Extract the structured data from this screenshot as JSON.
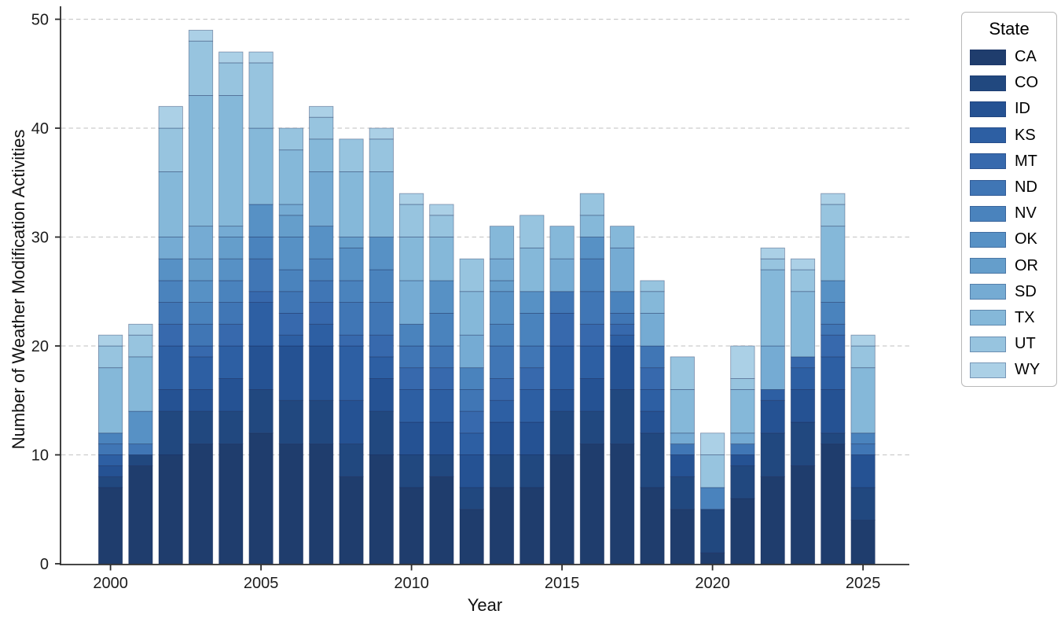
{
  "chart_data": {
    "type": "bar",
    "stacked": true,
    "title": "",
    "xlabel": "Year",
    "ylabel": "Number of Weather Modification Activities",
    "legend_title": "State",
    "legend_position": "outside-upper-right",
    "grid": "horizontal-dashed",
    "ylim": [
      0,
      50
    ],
    "yticks": [
      0,
      10,
      20,
      30,
      40,
      50
    ],
    "xticks": [
      2000,
      2005,
      2010,
      2015,
      2020,
      2025
    ],
    "x": [
      2000,
      2001,
      2002,
      2003,
      2004,
      2005,
      2006,
      2007,
      2008,
      2009,
      2010,
      2011,
      2012,
      2013,
      2014,
      2015,
      2016,
      2017,
      2018,
      2019,
      2020,
      2021,
      2022,
      2023,
      2024,
      2025
    ],
    "totals": [
      21,
      22,
      42,
      49,
      47,
      47,
      40,
      42,
      39,
      40,
      34,
      33,
      28,
      31,
      32,
      31,
      34,
      31,
      26,
      19,
      12,
      20,
      29,
      28,
      34,
      21
    ],
    "series": [
      {
        "name": "CA",
        "color": "#1f3d6d",
        "values": [
          7,
          9,
          10,
          11,
          11,
          12,
          11,
          11,
          8,
          10,
          7,
          8,
          5,
          7,
          7,
          10,
          11,
          11,
          7,
          5,
          1,
          6,
          8,
          9,
          11,
          4
        ]
      },
      {
        "name": "CO",
        "color": "#21487f",
        "values": [
          1,
          1,
          4,
          3,
          3,
          4,
          4,
          4,
          3,
          4,
          3,
          2,
          2,
          3,
          3,
          4,
          3,
          5,
          5,
          3,
          4,
          3,
          4,
          4,
          1,
          3
        ]
      },
      {
        "name": "ID",
        "color": "#255293",
        "values": [
          1,
          0,
          2,
          2,
          3,
          4,
          5,
          5,
          4,
          3,
          3,
          3,
          3,
          3,
          3,
          2,
          3,
          4,
          2,
          2,
          0,
          1,
          3,
          3,
          4,
          3
        ]
      },
      {
        "name": "KS",
        "color": "#2d5fa3",
        "values": [
          1,
          0,
          4,
          3,
          3,
          4,
          1,
          2,
          5,
          2,
          3,
          3,
          2,
          2,
          3,
          4,
          3,
          1,
          2,
          0,
          0,
          0,
          1,
          2,
          3,
          0
        ]
      },
      {
        "name": "MT",
        "color": "#3769ad",
        "values": [
          0,
          0,
          2,
          1,
          2,
          1,
          2,
          2,
          1,
          2,
          2,
          2,
          2,
          2,
          2,
          3,
          2,
          1,
          2,
          0,
          0,
          0,
          0,
          1,
          2,
          0
        ]
      },
      {
        "name": "ND",
        "color": "#4076b5",
        "values": [
          1,
          1,
          2,
          2,
          2,
          3,
          2,
          2,
          3,
          3,
          2,
          2,
          2,
          3,
          2,
          2,
          3,
          1,
          2,
          1,
          0,
          1,
          0,
          0,
          1,
          1
        ]
      },
      {
        "name": "NV",
        "color": "#4a83bd",
        "values": [
          1,
          0,
          2,
          2,
          2,
          2,
          2,
          2,
          2,
          3,
          2,
          3,
          2,
          2,
          3,
          0,
          3,
          2,
          0,
          0,
          2,
          0,
          0,
          0,
          2,
          1
        ]
      },
      {
        "name": "OK",
        "color": "#5791c5",
        "values": [
          0,
          3,
          2,
          2,
          2,
          3,
          3,
          3,
          3,
          3,
          0,
          3,
          0,
          3,
          2,
          0,
          2,
          0,
          0,
          0,
          0,
          0,
          0,
          0,
          2,
          0
        ]
      },
      {
        "name": "OR",
        "color": "#659ecb",
        "values": [
          0,
          0,
          0,
          2,
          2,
          0,
          2,
          0,
          1,
          0,
          0,
          0,
          0,
          1,
          0,
          0,
          0,
          0,
          0,
          0,
          0,
          0,
          0,
          0,
          0,
          0
        ]
      },
      {
        "name": "SD",
        "color": "#75abd3",
        "values": [
          0,
          0,
          2,
          3,
          1,
          0,
          1,
          5,
          0,
          0,
          4,
          0,
          3,
          2,
          0,
          3,
          0,
          4,
          3,
          1,
          0,
          1,
          4,
          0,
          0,
          0
        ]
      },
      {
        "name": "TX",
        "color": "#85b8d9",
        "values": [
          6,
          5,
          6,
          12,
          12,
          7,
          5,
          3,
          6,
          6,
          4,
          4,
          4,
          3,
          4,
          3,
          2,
          2,
          2,
          4,
          0,
          4,
          7,
          6,
          5,
          6
        ]
      },
      {
        "name": "UT",
        "color": "#97c4df",
        "values": [
          2,
          2,
          4,
          5,
          3,
          6,
          2,
          2,
          3,
          3,
          3,
          2,
          3,
          0,
          3,
          0,
          2,
          0,
          1,
          3,
          3,
          1,
          1,
          2,
          2,
          2
        ]
      },
      {
        "name": "WY",
        "color": "#abd0e6",
        "values": [
          1,
          1,
          2,
          1,
          1,
          1,
          0,
          1,
          0,
          1,
          1,
          1,
          0,
          0,
          0,
          0,
          0,
          0,
          0,
          0,
          2,
          3,
          1,
          1,
          1,
          1
        ]
      }
    ]
  }
}
